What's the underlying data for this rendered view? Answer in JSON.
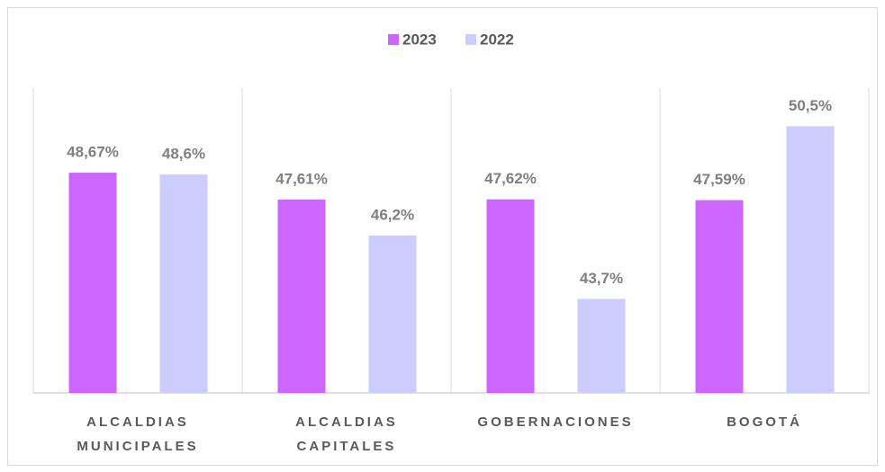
{
  "chart_data": {
    "type": "bar",
    "categories": [
      "ALCALDIAS MUNICIPALES",
      "ALCALDIAS CAPITALES",
      "GOBERNACIONES",
      "BOGOTÁ"
    ],
    "series": [
      {
        "name": "2023",
        "color": "#cc66ff",
        "values": [
          48.67,
          47.61,
          47.62,
          47.59
        ],
        "value_labels": [
          "48,67%",
          "47,61%",
          "47,62%",
          "47,59%"
        ]
      },
      {
        "name": "2022",
        "color": "#ccccff",
        "values": [
          48.6,
          46.2,
          43.7,
          50.5
        ],
        "value_labels": [
          "48,6%",
          "46,2%",
          "43,7%",
          "50,5%"
        ]
      }
    ],
    "ylim": [
      40,
      52
    ],
    "legend": "top"
  }
}
